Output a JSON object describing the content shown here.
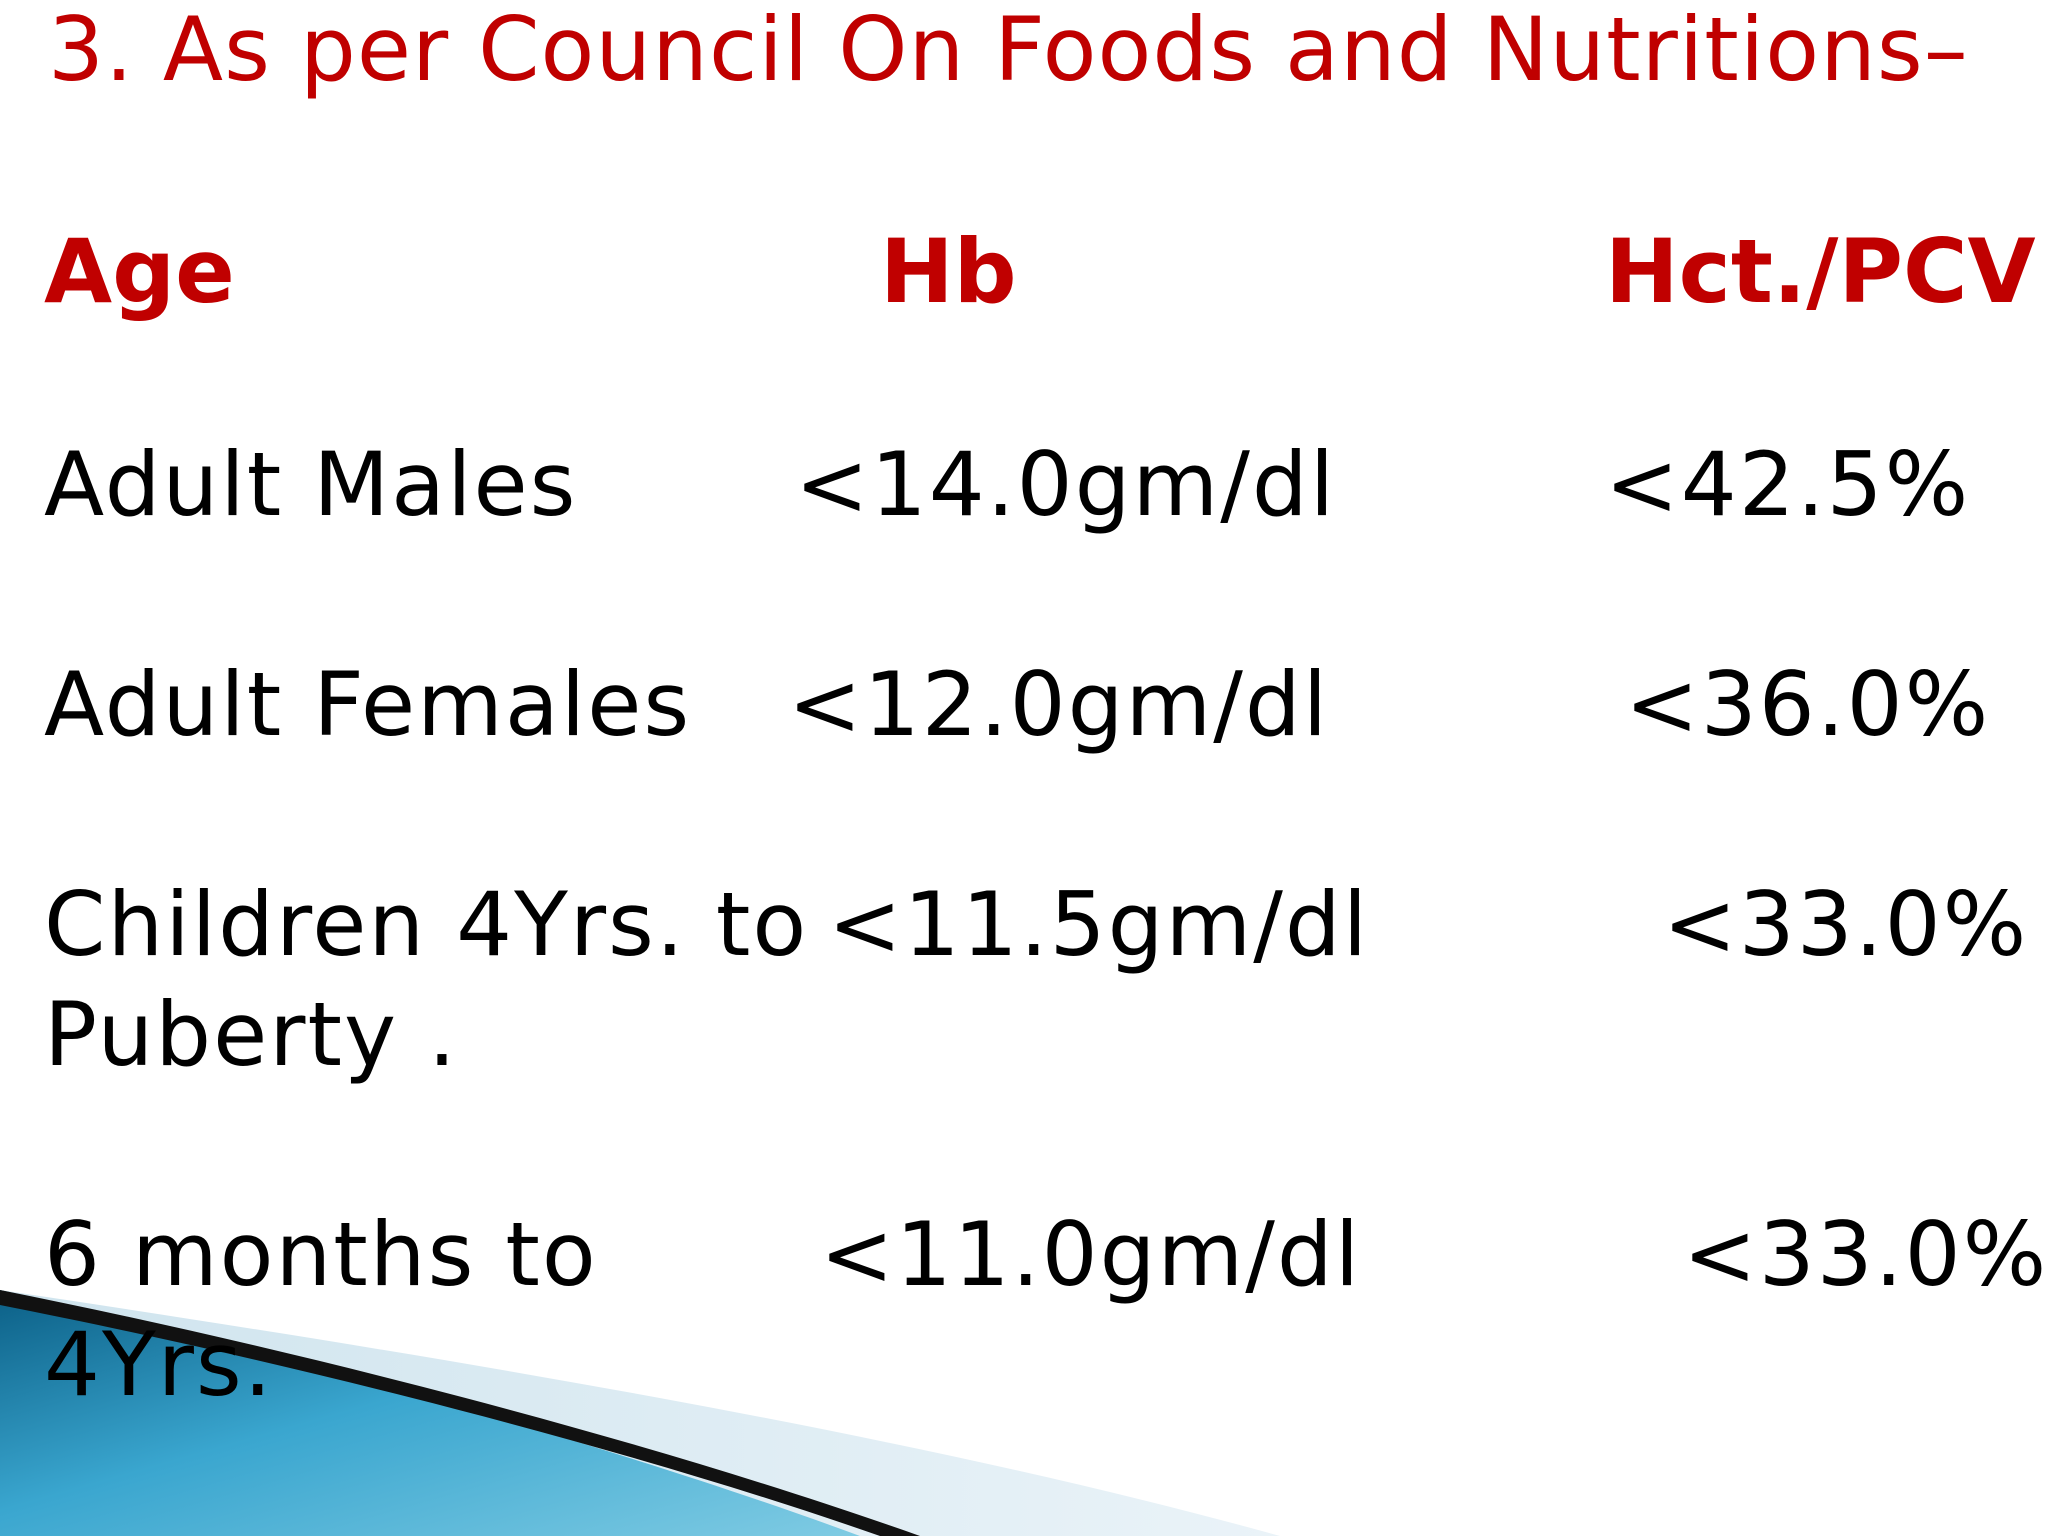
{
  "slide": {
    "title": "3. As per Council On Foods and Nutritions–",
    "headers": {
      "age": "Age",
      "hb": "Hb",
      "hct": "Hct./PCV"
    },
    "rows": [
      {
        "age_line1": "Adult Males",
        "age_line2": "",
        "hb": "<14.0gm/dl",
        "hct": "<42.5%"
      },
      {
        "age_line1": "Adult Females",
        "age_line2": "",
        "hb": "<12.0gm/dl",
        "hct": "<36.0%"
      },
      {
        "age_line1": "Children 4Yrs. to",
        "age_line2": "Puberty .",
        "hb": "<11.5gm/dl",
        "hct": "<33.0%"
      },
      {
        "age_line1": "6 months to",
        "age_line2": "4Yrs.",
        "hb": "<11.0gm/dl",
        "hct": "<33.0%"
      }
    ]
  },
  "colors": {
    "accent_red": "#c00000",
    "body_text": "#000000",
    "swoosh_blue": "#2a8fb5",
    "swoosh_light": "#d6e8f0"
  }
}
